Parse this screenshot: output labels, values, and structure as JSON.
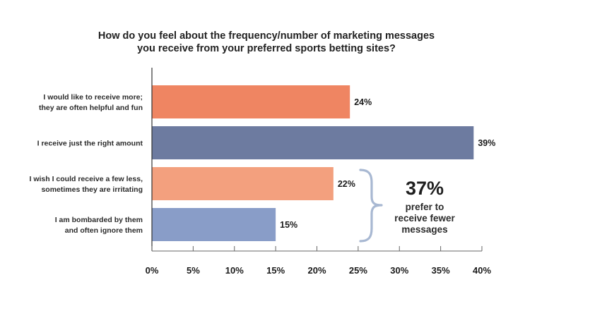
{
  "chart_data": {
    "type": "bar",
    "orientation": "horizontal",
    "title": [
      "How do you feel about the frequency/number of marketing messages",
      "you receive from your preferred sports betting sites?"
    ],
    "categories": [
      [
        "I would like to receive more;",
        "they are often helpful and fun"
      ],
      [
        "I receive just the right amount"
      ],
      [
        "I wish I could receive a few less,",
        "sometimes they are irritating"
      ],
      [
        "I am bombarded by them",
        "and often ignore them"
      ]
    ],
    "values": [
      24,
      39,
      22,
      15
    ],
    "value_labels": [
      "24%",
      "39%",
      "22%",
      "15%"
    ],
    "bar_colors": [
      "#EF8562",
      "#6D7BA0",
      "#F3A07E",
      "#899DC8"
    ],
    "xlim": [
      0,
      40
    ],
    "xticks": [
      0,
      5,
      10,
      15,
      20,
      25,
      30,
      35,
      40
    ],
    "xtick_labels": [
      "0%",
      "5%",
      "10%",
      "15%",
      "20%",
      "25%",
      "30%",
      "35%",
      "40%"
    ],
    "grid": false,
    "annotation": {
      "big": "37%",
      "lines": [
        "prefer to",
        "receive fewer",
        "messages"
      ],
      "brace_color": "#A8B8D2",
      "applies_to_categories": [
        2,
        3
      ]
    }
  }
}
